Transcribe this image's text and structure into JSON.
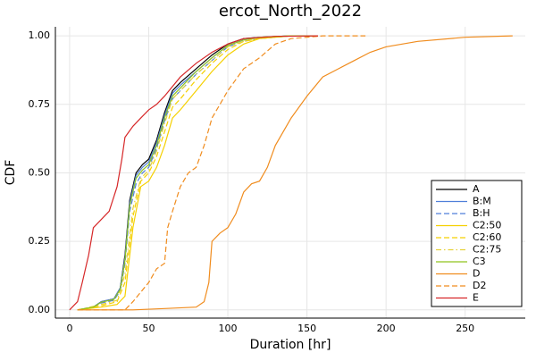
{
  "chart_data": {
    "type": "line",
    "title": "ercot_North_2022",
    "x_label": "Duration [hr]",
    "y_label": "CDF",
    "xlim": [
      -9,
      288
    ],
    "ylim": [
      -0.03,
      1.033
    ],
    "xticks": [
      0,
      50,
      100,
      150,
      200,
      250
    ],
    "yticks": [
      {
        "value": 0,
        "label": "0.00"
      },
      {
        "value": 0.25,
        "label": "0.25"
      },
      {
        "value": 0.5,
        "label": "0.50"
      },
      {
        "value": 0.75,
        "label": "0.75"
      },
      {
        "value": 1,
        "label": "1.00"
      }
    ],
    "grid": true,
    "legend": "bottom-right",
    "series": [
      {
        "name": "A",
        "color": "#000000",
        "dash": "solid",
        "x": [
          5,
          15,
          20,
          28,
          32,
          35,
          38,
          42,
          46,
          50,
          55,
          60,
          65,
          70,
          80,
          90,
          100,
          110,
          120,
          140,
          157
        ],
        "values": [
          0,
          0.01,
          0.03,
          0.04,
          0.08,
          0.2,
          0.4,
          0.5,
          0.53,
          0.55,
          0.62,
          0.72,
          0.8,
          0.83,
          0.88,
          0.93,
          0.97,
          0.99,
          0.995,
          1,
          1
        ]
      },
      {
        "name": "B:M",
        "color": "#4f7fd9",
        "dash": "solid",
        "x": [
          5,
          15,
          20,
          28,
          32,
          35,
          38,
          42,
          46,
          50,
          55,
          60,
          65,
          70,
          80,
          90,
          100,
          110,
          120,
          140,
          157
        ],
        "values": [
          0,
          0.01,
          0.03,
          0.04,
          0.08,
          0.19,
          0.39,
          0.49,
          0.52,
          0.54,
          0.61,
          0.71,
          0.79,
          0.82,
          0.87,
          0.92,
          0.965,
          0.985,
          0.995,
          1,
          1
        ]
      },
      {
        "name": "B:H",
        "color": "#4f7fd9",
        "dash": "dashed",
        "x": [
          5,
          15,
          20,
          28,
          32,
          35,
          38,
          42,
          46,
          50,
          55,
          60,
          65,
          70,
          80,
          90,
          100,
          110,
          120,
          140,
          157
        ],
        "values": [
          0,
          0.01,
          0.025,
          0.035,
          0.07,
          0.17,
          0.36,
          0.46,
          0.5,
          0.52,
          0.59,
          0.69,
          0.77,
          0.8,
          0.86,
          0.91,
          0.96,
          0.98,
          0.99,
          1,
          1
        ]
      },
      {
        "name": "C2:50",
        "color": "#f5d000",
        "dash": "solid",
        "x": [
          5,
          20,
          30,
          35,
          40,
          45,
          50,
          55,
          60,
          65,
          70,
          80,
          90,
          100,
          110,
          120,
          140,
          157
        ],
        "values": [
          0,
          0.01,
          0.02,
          0.05,
          0.3,
          0.45,
          0.47,
          0.52,
          0.6,
          0.7,
          0.73,
          0.8,
          0.87,
          0.93,
          0.97,
          0.99,
          1,
          1
        ]
      },
      {
        "name": "C2:60",
        "color": "#f5d000",
        "dash": "dashed",
        "x": [
          5,
          20,
          30,
          35,
          40,
          45,
          50,
          55,
          60,
          65,
          70,
          80,
          90,
          100,
          110,
          120,
          140,
          157
        ],
        "values": [
          0,
          0.015,
          0.03,
          0.1,
          0.34,
          0.47,
          0.5,
          0.56,
          0.65,
          0.74,
          0.77,
          0.84,
          0.9,
          0.95,
          0.98,
          0.99,
          1,
          1
        ]
      },
      {
        "name": "C2:75",
        "color": "#e6d23c",
        "dash": "dashdot",
        "x": [
          5,
          20,
          30,
          35,
          40,
          45,
          50,
          55,
          60,
          65,
          70,
          80,
          90,
          100,
          110,
          120,
          140,
          157
        ],
        "values": [
          0,
          0.02,
          0.035,
          0.13,
          0.37,
          0.48,
          0.51,
          0.58,
          0.68,
          0.77,
          0.8,
          0.86,
          0.91,
          0.96,
          0.98,
          0.995,
          1,
          1
        ]
      },
      {
        "name": "C3",
        "color": "#8fc31f",
        "dash": "solid",
        "x": [
          5,
          15,
          20,
          28,
          32,
          35,
          38,
          42,
          46,
          50,
          55,
          60,
          65,
          70,
          80,
          90,
          100,
          110,
          120,
          140,
          157
        ],
        "values": [
          0,
          0.01,
          0.028,
          0.038,
          0.075,
          0.18,
          0.38,
          0.48,
          0.51,
          0.53,
          0.6,
          0.7,
          0.78,
          0.81,
          0.87,
          0.92,
          0.965,
          0.985,
          0.995,
          1,
          1
        ]
      },
      {
        "name": "D",
        "color": "#f08c1e",
        "dash": "solid",
        "x": [
          5,
          40,
          60,
          80,
          85,
          88,
          90,
          95,
          100,
          105,
          110,
          115,
          120,
          125,
          130,
          140,
          150,
          160,
          170,
          180,
          190,
          200,
          220,
          250,
          280
        ],
        "values": [
          0,
          0,
          0.005,
          0.01,
          0.03,
          0.1,
          0.25,
          0.28,
          0.3,
          0.35,
          0.43,
          0.46,
          0.47,
          0.52,
          0.6,
          0.7,
          0.78,
          0.85,
          0.88,
          0.91,
          0.94,
          0.96,
          0.98,
          0.995,
          1
        ]
      },
      {
        "name": "D2",
        "color": "#f08c1e",
        "dash": "dashed",
        "x": [
          5,
          35,
          40,
          50,
          55,
          60,
          62,
          65,
          70,
          75,
          80,
          85,
          90,
          95,
          100,
          110,
          120,
          130,
          140,
          160,
          187
        ],
        "values": [
          0,
          0,
          0.03,
          0.1,
          0.15,
          0.17,
          0.3,
          0.36,
          0.45,
          0.5,
          0.52,
          0.6,
          0.7,
          0.75,
          0.8,
          0.88,
          0.92,
          0.97,
          0.99,
          1,
          1
        ]
      },
      {
        "name": "E",
        "color": "#d62728",
        "dash": "solid",
        "x": [
          0,
          5,
          8,
          12,
          15,
          20,
          25,
          30,
          33,
          35,
          40,
          45,
          50,
          55,
          60,
          70,
          80,
          90,
          100,
          110,
          130,
          157
        ],
        "values": [
          0,
          0.03,
          0.1,
          0.2,
          0.3,
          0.33,
          0.36,
          0.45,
          0.55,
          0.63,
          0.67,
          0.7,
          0.73,
          0.75,
          0.78,
          0.85,
          0.9,
          0.94,
          0.97,
          0.99,
          0.998,
          1
        ]
      }
    ]
  }
}
